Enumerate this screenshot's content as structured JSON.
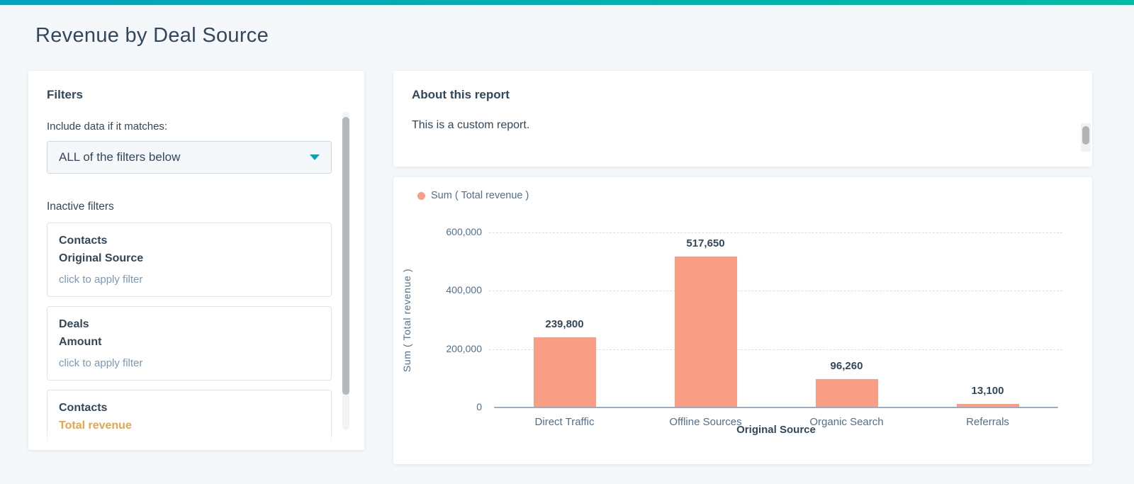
{
  "page": {
    "title": "Revenue by Deal Source",
    "accent_gradient_start": "#00a4bd",
    "accent_gradient_end": "#00bda5",
    "background": "#f5f8fa"
  },
  "filters_panel": {
    "heading": "Filters",
    "match_label": "Include data if it matches:",
    "match_dropdown_value": "ALL of the filters below",
    "inactive_heading": "Inactive filters",
    "filters": [
      {
        "object": "Contacts",
        "property": "Original Source",
        "hint": "click to apply filter",
        "property_color": "#33475b"
      },
      {
        "object": "Deals",
        "property": "Amount",
        "hint": "click to apply filter",
        "property_color": "#33475b"
      },
      {
        "object": "Contacts",
        "property": "Total revenue",
        "property_color": "#e3a64b"
      }
    ]
  },
  "about_panel": {
    "heading": "About this report",
    "body": "This is a custom report."
  },
  "chart_data": {
    "type": "bar",
    "legend": [
      {
        "label": "Sum ( Total revenue )",
        "color": "#f99e84"
      }
    ],
    "categories": [
      "Direct Traffic",
      "Offline Sources",
      "Organic Search",
      "Referrals"
    ],
    "values": [
      239800,
      517650,
      96260,
      13100
    ],
    "value_labels": [
      "239,800",
      "517,650",
      "96,260",
      "13,100"
    ],
    "xlabel": "Original Source",
    "ylabel": "Sum ( Total revenue )",
    "ylim": [
      0,
      600000
    ],
    "yticks": [
      0,
      200000,
      400000,
      600000
    ],
    "ytick_labels": [
      "0",
      "200,000",
      "400,000",
      "600,000"
    ],
    "bar_color": "#f99e84",
    "grid": "horizontal-dashed",
    "legend_position": "top-left"
  }
}
